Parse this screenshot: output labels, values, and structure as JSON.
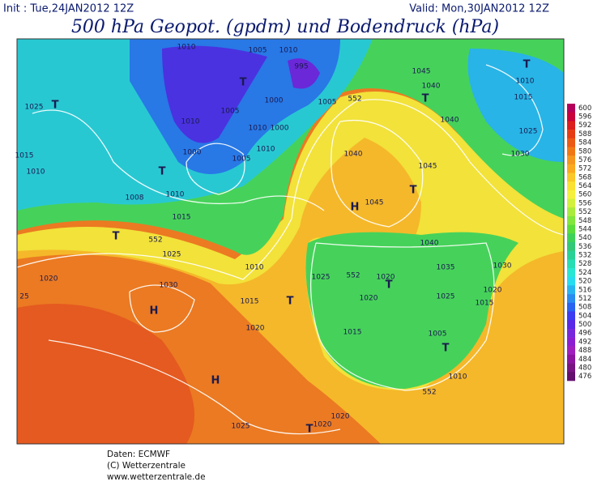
{
  "header": {
    "init": "Init : Tue,24JAN2012 12Z",
    "valid": "Valid: Mon,30JAN2012 12Z",
    "title": "500 hPa Geopot. (gpdm) und Bodendruck (hPa)"
  },
  "colorbar": {
    "values": [
      600,
      596,
      592,
      588,
      584,
      580,
      576,
      572,
      568,
      564,
      560,
      556,
      552,
      548,
      544,
      540,
      536,
      532,
      528,
      524,
      520,
      516,
      512,
      508,
      504,
      500,
      496,
      492,
      488,
      484,
      480,
      476
    ],
    "colors": [
      "#b4005a",
      "#c8003c",
      "#dc1e1e",
      "#e63c14",
      "#eb5a14",
      "#f07814",
      "#f5961e",
      "#faaa1e",
      "#fac828",
      "#fae132",
      "#f5f03c",
      "#d2f03c",
      "#aaeb3c",
      "#82e63c",
      "#5adc3c",
      "#3cd25a",
      "#32c878",
      "#28d296",
      "#28dcb4",
      "#28e6d2",
      "#28dcf0",
      "#28b4f0",
      "#288cf0",
      "#2864f0",
      "#3c3cf0",
      "#5a28e6",
      "#7828dc",
      "#8c1ed2",
      "#a01ebe",
      "#8c14a0",
      "#781482",
      "#640f6e"
    ]
  },
  "map_labels": [
    "1010",
    "1005",
    "1010",
    "995",
    "1045",
    "1040",
    "1010",
    "1015",
    "T",
    "T",
    "T",
    "1025",
    "T",
    "1005",
    "1000",
    "1005",
    "552",
    "1040",
    "1025",
    "1010",
    "1010",
    "1000",
    "1010",
    "1030",
    "1015",
    "1000",
    "1005",
    "1040",
    "1045",
    "1010",
    "T",
    "1010",
    "1008",
    "H",
    "1045",
    "T",
    "1015",
    "552",
    "T",
    "1025",
    "1040",
    "1035",
    "1030",
    "1010",
    "1020",
    "1030",
    "1025",
    "552",
    "1020",
    "T",
    "1020",
    "1025",
    "H",
    "1015",
    "T",
    "1020",
    "1015",
    "1020",
    "1015",
    "1005",
    "T",
    "H",
    "1010",
    "552",
    "1025",
    "T",
    "1020",
    "1020",
    "25"
  ],
  "footer": [
    "Daten: ECMWF",
    "(C) Wetterzentrale",
    "www.wetterzentrale.de"
  ]
}
